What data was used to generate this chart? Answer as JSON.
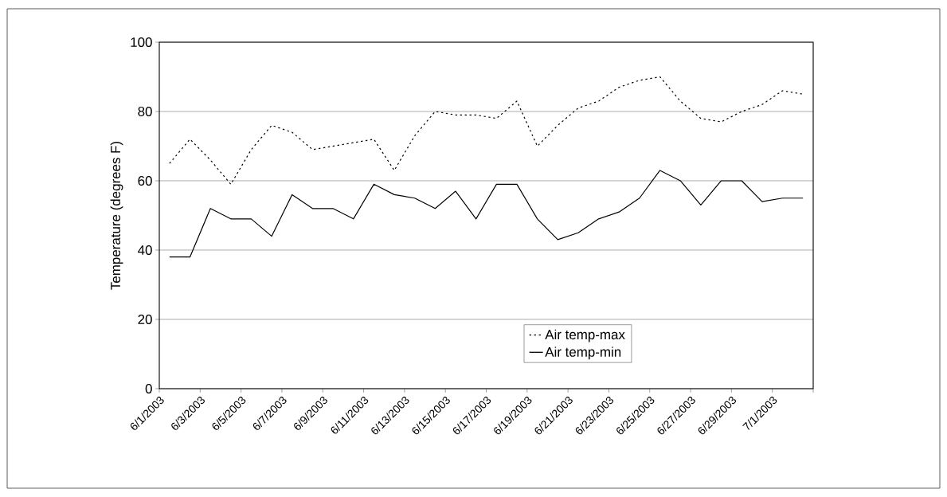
{
  "chart_data": {
    "type": "line",
    "ylabel": "Temperature (degrees F)",
    "x": [
      "2003-06-01T12:00",
      "2003-06-02T12:00",
      "2003-06-03T12:00",
      "2003-06-04T12:00",
      "2003-06-05T12:00",
      "2003-06-06T12:00",
      "2003-06-07T12:00",
      "2003-06-08T12:00",
      "2003-06-09T12:00",
      "2003-06-10T12:00",
      "2003-06-11T12:00",
      "2003-06-12T12:00",
      "2003-06-13T12:00",
      "2003-06-14T12:00",
      "2003-06-15T12:00",
      "2003-06-16T12:00",
      "2003-06-17T12:00",
      "2003-06-18T12:00",
      "2003-06-19T12:00",
      "2003-06-20T12:00",
      "2003-06-21T12:00",
      "2003-06-22T12:00",
      "2003-06-23T12:00",
      "2003-06-24T12:00",
      "2003-06-25T12:00",
      "2003-06-26T12:00",
      "2003-06-27T12:00",
      "2003-06-28T12:00",
      "2003-06-29T12:00",
      "2003-06-30T12:00",
      "2003-07-01T12:00",
      "2003-07-02T12:00"
    ],
    "series": [
      {
        "name": "Air temp-max",
        "color": "#000000",
        "line_style": "dotted",
        "values": [
          65,
          72,
          66,
          59,
          69,
          76,
          74,
          69,
          70,
          71,
          72,
          63,
          73,
          80,
          79,
          79,
          78,
          83,
          70,
          76,
          81,
          83,
          87,
          89,
          90,
          83,
          78,
          77,
          80,
          82,
          86,
          85
        ]
      },
      {
        "name": "Air temp-min",
        "color": "#000000",
        "line_style": "solid",
        "values": [
          38,
          38,
          52,
          49,
          49,
          44,
          56,
          52,
          52,
          49,
          59,
          56,
          55,
          52,
          57,
          49,
          59,
          59,
          49,
          43,
          45,
          49,
          51,
          55,
          63,
          60,
          53,
          60,
          60,
          54,
          55,
          55
        ]
      }
    ],
    "xlim": [
      "2003-06-01",
      "2003-07-03"
    ],
    "xticks": [
      {
        "value": "2003-06-01",
        "label": "6/1/2003"
      },
      {
        "value": "2003-06-03",
        "label": "6/3/2003"
      },
      {
        "value": "2003-06-05",
        "label": "6/5/2003"
      },
      {
        "value": "2003-06-07",
        "label": "6/7/2003"
      },
      {
        "value": "2003-06-09",
        "label": "6/9/2003"
      },
      {
        "value": "2003-06-11",
        "label": "6/11/2003"
      },
      {
        "value": "2003-06-13",
        "label": "6/13/2003"
      },
      {
        "value": "2003-06-15",
        "label": "6/15/2003"
      },
      {
        "value": "2003-06-17",
        "label": "6/17/2003"
      },
      {
        "value": "2003-06-19",
        "label": "6/19/2003"
      },
      {
        "value": "2003-06-21",
        "label": "6/21/2003"
      },
      {
        "value": "2003-06-23",
        "label": "6/23/2003"
      },
      {
        "value": "2003-06-25",
        "label": "6/25/2003"
      },
      {
        "value": "2003-06-27",
        "label": "6/27/2003"
      },
      {
        "value": "2003-06-29",
        "label": "6/29/2003"
      },
      {
        "value": "2003-07-01",
        "label": "7/1/2003"
      },
      {
        "value": "2003-07-03",
        "label": null
      }
    ],
    "ylim": [
      0,
      100
    ],
    "yticks": [
      0,
      20,
      40,
      60,
      80,
      100
    ],
    "grid": "y",
    "legend": "bottom"
  }
}
